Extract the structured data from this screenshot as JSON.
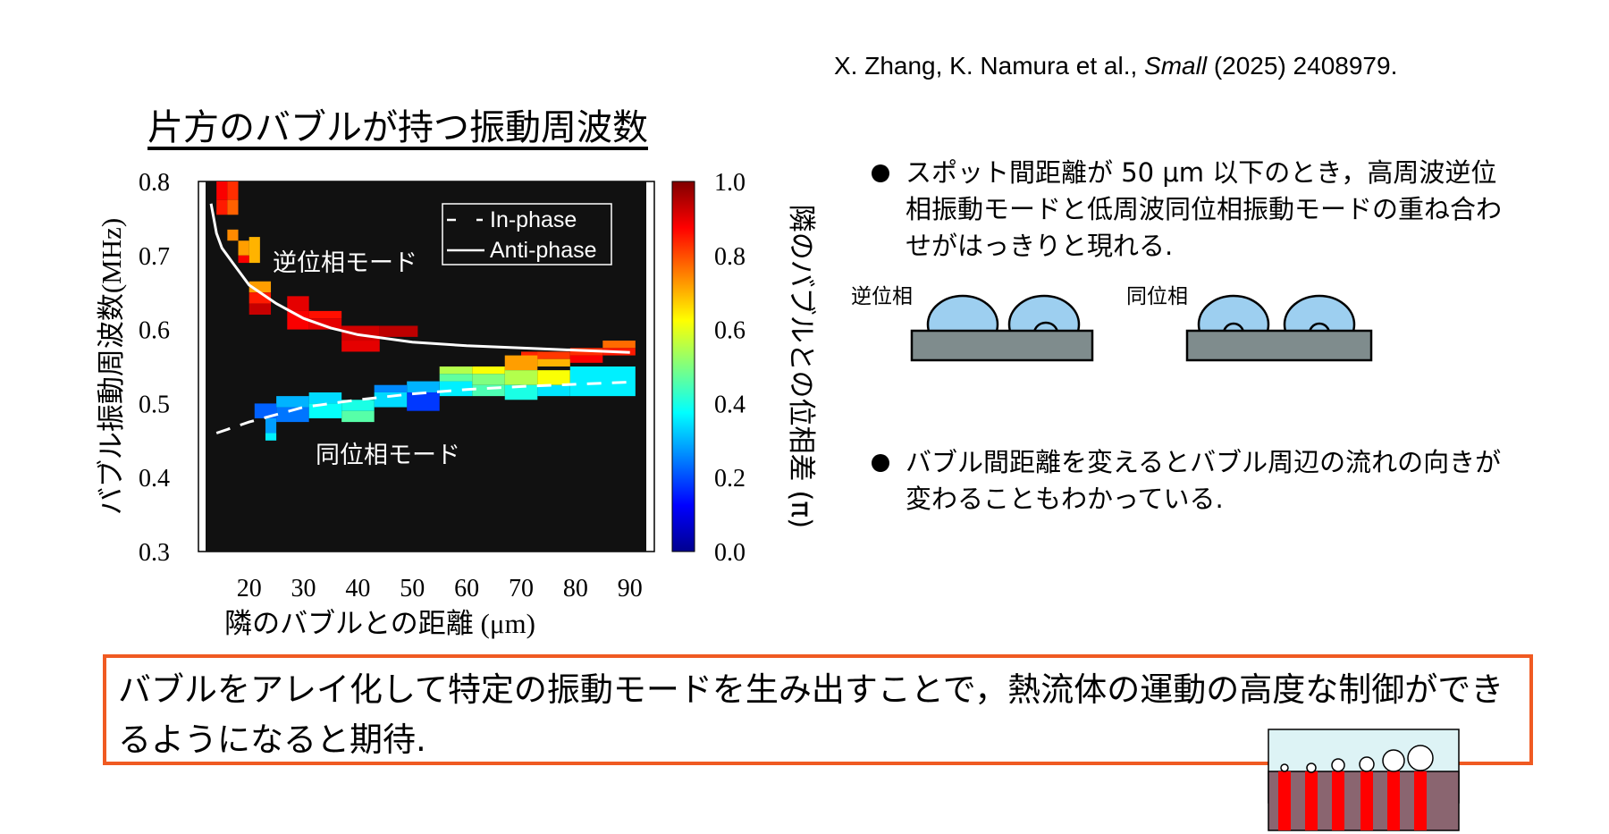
{
  "citation": {
    "authors": "X. Zhang, K. Namura et al., ",
    "journal": "Small",
    "rest": " (2025) 2408979."
  },
  "section_title": "片方のバブルが持つ振動周波数",
  "legend": {
    "in_phase": "In-phase",
    "anti_phase": "Anti-phase"
  },
  "annotations": {
    "anti_mode": "逆位相モード",
    "in_mode": "同位相モード"
  },
  "bullets": [
    "スポット間距離が 50 μm 以下のとき，高周波逆位相振動モードと低周波同位相振動モードの重ね合わせがはっきりと現れる.",
    "バブル間距離を変えるとバブル周辺の流れの向きが変わることもわかっている."
  ],
  "diagram": {
    "anti_label": "逆位相",
    "in_label": "同位相"
  },
  "conclusion": "バブルをアレイ化して特定の振動モードを生み出すことで，熱流体の運動の高度な制御ができるようになると期待.",
  "chart_data": {
    "type": "heatmap",
    "xlabel": "隣のバブルとの距離 (μm)",
    "ylabel": "バブル振動周波数(MHz)",
    "colorbar_label": "隣のバブルとの位相差 (π)",
    "xlim": [
      12,
      93
    ],
    "ylim": [
      0.3,
      0.8
    ],
    "xticks": [
      20,
      30,
      40,
      50,
      60,
      70,
      80,
      90
    ],
    "yticks": [
      0.3,
      0.4,
      0.5,
      0.6,
      0.7,
      0.8
    ],
    "cticks": [
      0.0,
      0.2,
      0.4,
      0.6,
      0.8,
      1.0
    ],
    "clim": [
      0,
      1
    ],
    "background_color": "#000000",
    "colormap": "jet",
    "cells": [
      {
        "x": 14,
        "w": 2,
        "y": 0.775,
        "h": 0.025,
        "c": 0.88
      },
      {
        "x": 16,
        "w": 2,
        "y": 0.775,
        "h": 0.025,
        "c": 0.83
      },
      {
        "x": 14,
        "w": 2,
        "y": 0.755,
        "h": 0.02,
        "c": 0.85
      },
      {
        "x": 16,
        "w": 2,
        "y": 0.755,
        "h": 0.02,
        "c": 0.78
      },
      {
        "x": 16,
        "w": 2,
        "y": 0.72,
        "h": 0.015,
        "c": 0.74
      },
      {
        "x": 18,
        "w": 2,
        "y": 0.7,
        "h": 0.02,
        "c": 0.72
      },
      {
        "x": 20,
        "w": 2,
        "y": 0.69,
        "h": 0.035,
        "c": 0.7
      },
      {
        "x": 18,
        "w": 2,
        "y": 0.69,
        "h": 0.01,
        "c": 0.88
      },
      {
        "x": 20,
        "w": 4,
        "y": 0.65,
        "h": 0.015,
        "c": 0.72
      },
      {
        "x": 20,
        "w": 4,
        "y": 0.635,
        "h": 0.015,
        "c": 0.85
      },
      {
        "x": 20,
        "w": 4,
        "y": 0.62,
        "h": 0.015,
        "c": 0.93
      },
      {
        "x": 27,
        "w": 4,
        "y": 0.625,
        "h": 0.02,
        "c": 0.9
      },
      {
        "x": 27,
        "w": 4,
        "y": 0.6,
        "h": 0.025,
        "c": 0.88
      },
      {
        "x": 31,
        "w": 6,
        "y": 0.615,
        "h": 0.01,
        "c": 0.86
      },
      {
        "x": 31,
        "w": 6,
        "y": 0.6,
        "h": 0.015,
        "c": 0.9
      },
      {
        "x": 37,
        "w": 7,
        "y": 0.585,
        "h": 0.02,
        "c": 0.92
      },
      {
        "x": 37,
        "w": 7,
        "y": 0.57,
        "h": 0.015,
        "c": 0.9
      },
      {
        "x": 44,
        "w": 7,
        "y": 0.59,
        "h": 0.015,
        "c": 0.94
      },
      {
        "x": 70,
        "w": 4,
        "y": 0.56,
        "h": 0.01,
        "c": 0.84
      },
      {
        "x": 73,
        "w": 6,
        "y": 0.56,
        "h": 0.01,
        "c": 0.82
      },
      {
        "x": 79,
        "w": 6,
        "y": 0.565,
        "h": 0.01,
        "c": 0.83
      },
      {
        "x": 85,
        "w": 6,
        "y": 0.575,
        "h": 0.01,
        "c": 0.77
      },
      {
        "x": 85,
        "w": 6,
        "y": 0.565,
        "h": 0.01,
        "c": 0.85
      },
      {
        "x": 79,
        "w": 6,
        "y": 0.555,
        "h": 0.01,
        "c": 0.88
      },
      {
        "x": 67,
        "w": 6,
        "y": 0.545,
        "h": 0.02,
        "c": 0.72
      },
      {
        "x": 73,
        "w": 6,
        "y": 0.55,
        "h": 0.01,
        "c": 0.7
      },
      {
        "x": 61,
        "w": 6,
        "y": 0.54,
        "h": 0.01,
        "c": 0.62
      },
      {
        "x": 55,
        "w": 6,
        "y": 0.54,
        "h": 0.01,
        "c": 0.55
      },
      {
        "x": 55,
        "w": 6,
        "y": 0.53,
        "h": 0.01,
        "c": 0.47
      },
      {
        "x": 61,
        "w": 6,
        "y": 0.525,
        "h": 0.015,
        "c": 0.5
      },
      {
        "x": 67,
        "w": 6,
        "y": 0.525,
        "h": 0.02,
        "c": 0.55
      },
      {
        "x": 73,
        "w": 6,
        "y": 0.525,
        "h": 0.02,
        "c": 0.62
      },
      {
        "x": 79,
        "w": 12,
        "y": 0.51,
        "h": 0.04,
        "c": 0.36
      },
      {
        "x": 73,
        "w": 6,
        "y": 0.51,
        "h": 0.015,
        "c": 0.35
      },
      {
        "x": 67,
        "w": 6,
        "y": 0.505,
        "h": 0.02,
        "c": 0.4
      },
      {
        "x": 61,
        "w": 6,
        "y": 0.51,
        "h": 0.015,
        "c": 0.45
      },
      {
        "x": 55,
        "w": 6,
        "y": 0.51,
        "h": 0.02,
        "c": 0.36
      },
      {
        "x": 49,
        "w": 6,
        "y": 0.515,
        "h": 0.015,
        "c": 0.3
      },
      {
        "x": 49,
        "w": 6,
        "y": 0.49,
        "h": 0.025,
        "c": 0.18
      },
      {
        "x": 43,
        "w": 6,
        "y": 0.515,
        "h": 0.01,
        "c": 0.26
      },
      {
        "x": 43,
        "w": 6,
        "y": 0.495,
        "h": 0.02,
        "c": 0.34
      },
      {
        "x": 37,
        "w": 6,
        "y": 0.49,
        "h": 0.015,
        "c": 0.4
      },
      {
        "x": 37,
        "w": 6,
        "y": 0.475,
        "h": 0.015,
        "c": 0.46
      },
      {
        "x": 31,
        "w": 6,
        "y": 0.5,
        "h": 0.015,
        "c": 0.34
      },
      {
        "x": 31,
        "w": 6,
        "y": 0.48,
        "h": 0.02,
        "c": 0.38
      },
      {
        "x": 25,
        "w": 6,
        "y": 0.495,
        "h": 0.015,
        "c": 0.3
      },
      {
        "x": 25,
        "w": 6,
        "y": 0.475,
        "h": 0.02,
        "c": 0.24
      },
      {
        "x": 21,
        "w": 4,
        "y": 0.48,
        "h": 0.02,
        "c": 0.22
      },
      {
        "x": 23,
        "w": 2,
        "y": 0.46,
        "h": 0.02,
        "c": 0.28
      },
      {
        "x": 23,
        "w": 2,
        "y": 0.45,
        "h": 0.01,
        "c": 0.36
      }
    ],
    "series": [
      {
        "name": "Anti-phase",
        "style": "solid",
        "x": [
          13,
          14,
          15,
          17,
          20,
          25,
          30,
          35,
          40,
          50,
          60,
          70,
          80,
          90
        ],
        "y": [
          0.77,
          0.73,
          0.71,
          0.69,
          0.66,
          0.635,
          0.615,
          0.602,
          0.593,
          0.583,
          0.578,
          0.575,
          0.572,
          0.569
        ]
      },
      {
        "name": "In-phase",
        "style": "dashed",
        "x": [
          14,
          20,
          25,
          30,
          40,
          50,
          60,
          70,
          80,
          90
        ],
        "y": [
          0.46,
          0.475,
          0.485,
          0.495,
          0.505,
          0.513,
          0.519,
          0.523,
          0.526,
          0.529
        ]
      }
    ]
  }
}
